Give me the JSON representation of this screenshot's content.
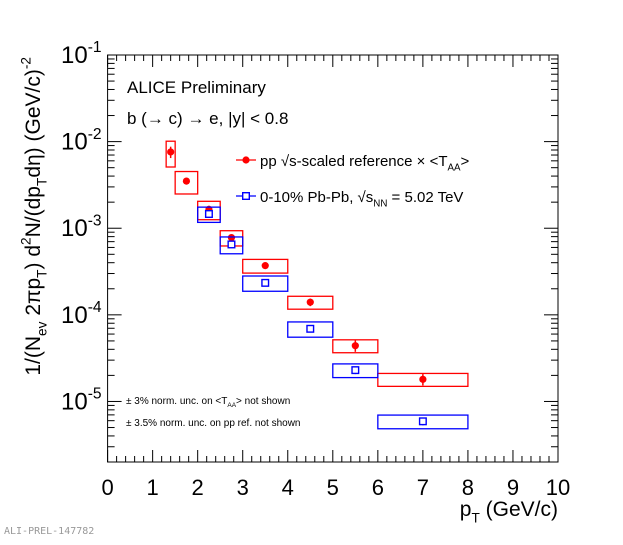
{
  "chart_data": {
    "type": "scatter",
    "title": "",
    "xlabel": "p_{T} (GeV/c)",
    "ylabel": "1/(N_{ev} 2πp_{T}) d^{2}N/(dp_{T}dη) (GeV/c)^{-2}",
    "xlim": [
      0,
      10
    ],
    "ylim": [
      2e-06,
      0.1
    ],
    "yscale": "log",
    "grid": false,
    "legend_placement": "top-right",
    "x_tick_labels": [
      "0",
      "1",
      "2",
      "3",
      "4",
      "5",
      "6",
      "7",
      "8",
      "9",
      "10"
    ],
    "y_tick_labels": [
      {
        "value": 1e-05,
        "label": "10^{-5}"
      },
      {
        "value": 0.0001,
        "label": "10^{-4}"
      },
      {
        "value": 0.001,
        "label": "10^{-3}"
      },
      {
        "value": 0.01,
        "label": "10^{-2}"
      },
      {
        "value": 0.1,
        "label": "10^{-1}"
      }
    ],
    "series": [
      {
        "name": "pp √s-scaled reference × <T_{AA}>",
        "color": "#ff0000",
        "marker": "filled-circle",
        "bins": [
          [
            1.3,
            1.5
          ],
          [
            1.5,
            2.0
          ],
          [
            2.0,
            2.5
          ],
          [
            2.5,
            3.0
          ],
          [
            3.0,
            4.0
          ],
          [
            4.0,
            5.0
          ],
          [
            5.0,
            6.0
          ],
          [
            6.0,
            8.0
          ]
        ],
        "x": [
          1.4,
          1.75,
          2.25,
          2.75,
          3.5,
          4.5,
          5.5,
          7.0
        ],
        "y": [
          0.0076,
          0.0035,
          0.00165,
          0.00078,
          0.00037,
          0.00014,
          4.4e-05,
          1.8e-05
        ],
        "stat_rel": [
          0.15,
          0.08,
          0.1,
          0.08,
          0.05,
          0.1,
          0.15,
          0.15
        ],
        "sys_rel": [
          0.33,
          0.29,
          0.24,
          0.2,
          0.18,
          0.17,
          0.17,
          0.17
        ]
      },
      {
        "name": "0-10% Pb-Pb, √s_{NN} = 5.02 TeV",
        "color": "#0000ff",
        "marker": "open-square",
        "bins": [
          [
            2.0,
            2.5
          ],
          [
            2.5,
            3.0
          ],
          [
            3.0,
            4.0
          ],
          [
            4.0,
            5.0
          ],
          [
            5.0,
            6.0
          ],
          [
            6.0,
            8.0
          ]
        ],
        "x": [
          2.25,
          2.75,
          3.5,
          4.5,
          5.5,
          7.0
        ],
        "y": [
          0.00146,
          0.00065,
          0.000234,
          6.9e-05,
          2.3e-05,
          5.9e-06
        ],
        "stat_rel": [
          0.05,
          0.05,
          0.05,
          0.08,
          0.1,
          0.1
        ],
        "sys_rel": [
          0.2,
          0.22,
          0.2,
          0.2,
          0.18,
          0.18
        ]
      }
    ],
    "annotations": [
      "ALICE Preliminary",
      "b (→ c) → e, |y| < 0.8",
      "± 3% norm. unc. on <T_{AA}> not shown",
      "± 3.5% norm. unc. on pp ref. not shown"
    ]
  },
  "watermark": "ALI-PREL-147782"
}
